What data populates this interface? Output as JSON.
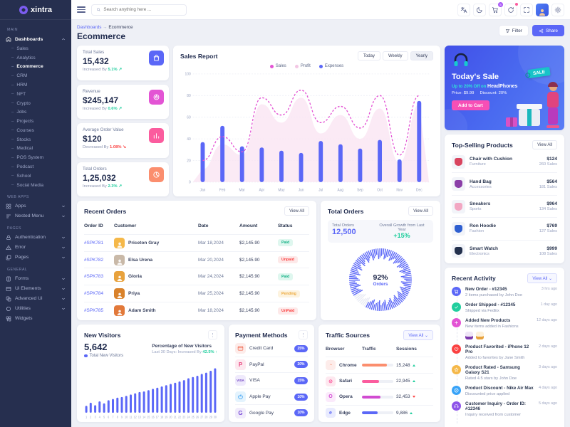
{
  "brand": {
    "name": "xintra"
  },
  "topbar": {
    "search_placeholder": "Search anything here ...",
    "cart_badge": "5"
  },
  "page": {
    "breadcrumb_parent": "Dashboards",
    "breadcrumb_sep": "→",
    "breadcrumb_current": "Ecommerce",
    "title": "Ecommerce",
    "filter_label": "Filter",
    "share_label": "Share"
  },
  "sidebar": {
    "sections": [
      {
        "label": "MAIN",
        "items": [
          {
            "label": "Dashboards",
            "icon": "home-icon",
            "expanded": true,
            "active": true,
            "children": [
              "Sales",
              "Analytics",
              "Ecommerce",
              "CRM",
              "HRM",
              "NFT",
              "Crypto",
              "Jobs",
              "Projects",
              "Courses",
              "Stocks",
              "Medical",
              "POS System",
              "Podcast",
              "School",
              "Social Media"
            ],
            "active_child": "Ecommerce"
          }
        ]
      },
      {
        "label": "WEB APPS",
        "items": [
          {
            "label": "Apps",
            "icon": "apps-icon",
            "chevron": true
          },
          {
            "label": "Nested Menu",
            "icon": "nested-menu-icon",
            "chevron": true
          }
        ]
      },
      {
        "label": "PAGES",
        "items": [
          {
            "label": "Authentication",
            "icon": "lock-icon",
            "chevron": true
          },
          {
            "label": "Error",
            "icon": "error-icon",
            "chevron": true
          },
          {
            "label": "Pages",
            "icon": "pages-icon",
            "chevron": true
          }
        ]
      },
      {
        "label": "GENERAL",
        "items": [
          {
            "label": "Forms",
            "icon": "forms-icon",
            "chevron": true
          },
          {
            "label": "Ui Elements",
            "icon": "ui-elements-icon",
            "chevron": true
          },
          {
            "label": "Advanced Ui",
            "icon": "advanced-ui-icon",
            "chevron": true
          },
          {
            "label": "Utilities",
            "icon": "utilities-icon",
            "chevron": true
          },
          {
            "label": "Widgets",
            "icon": "widgets-icon"
          }
        ]
      }
    ]
  },
  "stats": [
    {
      "label": "Total Sales",
      "value": "15,432",
      "change_prefix": "Increased By",
      "change": "5.1%",
      "direction": "up",
      "icon": "shopping-bag-icon",
      "icon_bg": "#5b67f7"
    },
    {
      "label": "Revenue",
      "value": "$245,147",
      "change_prefix": "Increased By",
      "change": "0.6%",
      "direction": "up",
      "icon": "donut-chart-icon",
      "icon_bg": "#e354d4"
    },
    {
      "label": "Average Order Value",
      "value": "$120",
      "change_prefix": "Decreased By",
      "change": "1.08%",
      "direction": "down",
      "icon": "bar-chart-icon",
      "icon_bg": "#fb5c9e"
    },
    {
      "label": "Total Orders",
      "value": "1,25,032",
      "change_prefix": "Increased By",
      "change": "2.3%",
      "direction": "up",
      "icon": "pie-chart-icon",
      "icon_bg": "#fb8e6e"
    }
  ],
  "sales_report": {
    "title": "Sales Report",
    "range_buttons": [
      "Today",
      "Weekly",
      "Yearly"
    ],
    "active_range": "Yearly"
  },
  "banner": {
    "title": "Today's Sale",
    "subtitle_highlight": "Up to 20% Off on",
    "subtitle_product": "HeadPhones",
    "price_label": "Price: $9.99",
    "discount_label": "Discount: 20%",
    "button_label": "Add to Cart",
    "sale_tag": "SALE"
  },
  "top_selling": {
    "title": "Top-Selling Products",
    "view_all_label": "View All",
    "products": [
      {
        "name": "Chair with Cushion",
        "category": "Furniture",
        "price": "$124",
        "sales": "260 Sales",
        "thumb_color": "#d9455f"
      },
      {
        "name": "Hand Bag",
        "category": "Accessories",
        "price": "$564",
        "sales": "181 Sales",
        "thumb_color": "#8b3fa8"
      },
      {
        "name": "Sneakers",
        "category": "Sports",
        "price": "$964",
        "sales": "134 Sales",
        "thumb_color": "#f2a7c3"
      },
      {
        "name": "Ron Hoodie",
        "category": "Fashion",
        "price": "$769",
        "sales": "127 Sales",
        "thumb_color": "#2f5fd0"
      },
      {
        "name": "Smart Watch",
        "category": "Electronics",
        "price": "$999",
        "sales": "108 Sales",
        "thumb_color": "#23304d"
      }
    ]
  },
  "recent_orders": {
    "title": "Recent Orders",
    "view_all_label": "View All",
    "columns": [
      "Order ID",
      "Customer",
      "Date",
      "Amount",
      "Status"
    ],
    "rows": [
      {
        "id": "#SPK781",
        "customer": "Priceton Gray",
        "date": "Mar 18,2024",
        "amount": "$2,145.90",
        "status": "Paid",
        "avatar_color": "#f5b849"
      },
      {
        "id": "#SPK782",
        "customer": "Elsa Urena",
        "date": "Mar 20,2024",
        "amount": "$2,145.90",
        "status": "Unpaid",
        "avatar_color": "#c9b9a8"
      },
      {
        "id": "#SPK783",
        "customer": "Gloria",
        "date": "Mar 24,2024",
        "amount": "$2,145.90",
        "status": "Paid",
        "avatar_color": "#e8a23d"
      },
      {
        "id": "#SPK784",
        "customer": "Priya",
        "date": "Mar 25,2024",
        "amount": "$2,145.90",
        "status": "Pending",
        "avatar_color": "#d9822b"
      },
      {
        "id": "#SPK785",
        "customer": "Adam Smith",
        "date": "Mar 18,2024",
        "amount": "$2,145.90",
        "status": "UnPaid",
        "avatar_color": "#e2793a"
      }
    ]
  },
  "total_orders": {
    "title": "Total Orders",
    "view_all_label": "View All",
    "summary_label": "Total Orders",
    "summary_value": "12,500",
    "growth_label": "Overall Growth from Last Year",
    "growth_value": "+15%",
    "gauge_value": "92%",
    "gauge_label": "Orders"
  },
  "recent_activity": {
    "title": "Recent Activity",
    "view_all_label": "View All",
    "items": [
      {
        "title": "New Order - #12345",
        "desc": "2 items purchased by John Doe",
        "time": "3 hrs ago",
        "color": "#5b67f7",
        "icon": "cart-icon"
      },
      {
        "title": "Order Shipped - #12345",
        "desc": "Shipped via FedEx",
        "time": "1 day ago",
        "color": "#21ce9e",
        "icon": "check-icon"
      },
      {
        "title": "Added New Products",
        "desc": "New items added in Fashions",
        "time": "12 days ago",
        "color": "#e354d4",
        "icon": "plus-icon",
        "thumbs": [
          "handbag-thumb",
          "dress-thumb"
        ]
      },
      {
        "title": "Product Favorited - iPhone 12 Pro",
        "desc": "Added to favorites by Jane Smith",
        "time": "2 days ago",
        "color": "#fb4242",
        "icon": "heart-icon"
      },
      {
        "title": "Product Rated - Samsung Galaxy S21",
        "desc": "Rated 4.5 stars by John Doe",
        "time": "3 days ago",
        "color": "#f5b849",
        "icon": "star-icon"
      },
      {
        "title": "Product Discount - Nike Air Max",
        "desc": "Discounted price applied",
        "time": "4 days ago",
        "color": "#38a3f8",
        "icon": "discount-icon"
      },
      {
        "title": "Customer Inquiry - Order ID: #12346",
        "desc": "Inquiry received from customer",
        "time": "5 days ago",
        "color": "#8e54e9",
        "icon": "support-icon"
      }
    ]
  },
  "new_visitors": {
    "title": "New Visitors",
    "value": "5,642",
    "legend": "Total New Visitors",
    "right_title": "Percentage of New Visitors",
    "right_sub_prefix": "Last 30 Days: Increased By",
    "right_sub_value": "42.5%"
  },
  "payment_methods": {
    "title": "Payment Methods",
    "items": [
      {
        "name": "Credit Card",
        "share": "25%",
        "icon": "credit-card-icon",
        "icon_bg": "#fdecea",
        "icon_color": "#f0654a"
      },
      {
        "name": "PayPal",
        "share": "20%",
        "icon": "paypal-icon",
        "icon_bg": "#fde8ef",
        "icon_color": "#e8447e"
      },
      {
        "name": "VISA",
        "share": "15%",
        "icon": "visa-icon",
        "icon_bg": "#efeafc",
        "icon_color": "#6f42c1"
      },
      {
        "name": "Apple Pay",
        "share": "10%",
        "icon": "apple-pay-icon",
        "icon_bg": "#e4f3fd",
        "icon_color": "#2196f3"
      },
      {
        "name": "Google Pay",
        "share": "10%",
        "icon": "google-pay-icon",
        "icon_bg": "#f1ecfb",
        "icon_color": "#7c4dd8"
      }
    ]
  },
  "traffic_sources": {
    "title": "Traffic Sources",
    "view_all_label": "View All",
    "columns": [
      "Browser",
      "Traffic",
      "Sessions"
    ],
    "rows": [
      {
        "browser": "Chrome",
        "sessions": "15,248",
        "trend": "up",
        "traffic_pct": 80,
        "color": "#fb8e6e",
        "icon_bg": "#fdecea",
        "glyph": "◔"
      },
      {
        "browser": "Safari",
        "sessions": "22,945",
        "trend": "up",
        "traffic_pct": 55,
        "color": "#fb5c9e",
        "icon_bg": "#fde8ef",
        "glyph": "⊘"
      },
      {
        "browser": "Opera",
        "sessions": "32,453",
        "trend": "down",
        "traffic_pct": 60,
        "color": "#d14bd1",
        "icon_bg": "#fbeafb",
        "glyph": "O"
      },
      {
        "browser": "Edge",
        "sessions": "9,886",
        "trend": "up",
        "traffic_pct": 50,
        "color": "#5b67f7",
        "icon_bg": "#e9ebfe",
        "glyph": "e"
      }
    ]
  },
  "chart_data": [
    {
      "type": "line",
      "name": "sales_report",
      "title": "Sales Report",
      "categories": [
        "Jan",
        "Feb",
        "Mar",
        "Apr",
        "May",
        "Jun",
        "Jul",
        "Aug",
        "Sep",
        "Oct",
        "Nov",
        "Dec"
      ],
      "series": [
        {
          "name": "Sales",
          "type": "line",
          "style": "dashed",
          "color": "#e354d4",
          "values": [
            20,
            42,
            28,
            78,
            62,
            85,
            55,
            70,
            50,
            80,
            25,
            80
          ]
        },
        {
          "name": "Profit",
          "type": "area",
          "color": "#f9e3f1",
          "values": [
            12,
            35,
            25,
            72,
            55,
            78,
            45,
            62,
            40,
            68,
            18,
            72
          ]
        },
        {
          "name": "Expenses",
          "type": "bar",
          "color": "#5b67f7",
          "values": [
            37,
            52,
            33,
            32,
            29,
            27,
            38,
            35,
            31,
            39,
            21,
            75
          ]
        }
      ],
      "ylim": [
        0,
        100
      ],
      "yticks": [
        0,
        20,
        40,
        60,
        80,
        100
      ],
      "grid": true,
      "legend_position": "top"
    },
    {
      "type": "gauge",
      "name": "total_orders_gauge",
      "value": 92,
      "max": 100,
      "label": "Orders",
      "color": "#5b67f7"
    },
    {
      "type": "bar",
      "name": "new_visitors",
      "categories": [
        "1",
        "2",
        "3",
        "4",
        "5",
        "6",
        "7",
        "8",
        "9",
        "10",
        "11",
        "12",
        "13",
        "14",
        "15",
        "16",
        "17",
        "18",
        "19",
        "20",
        "21",
        "22",
        "23",
        "24",
        "25",
        "26",
        "27",
        "28",
        "29",
        "30"
      ],
      "values": [
        11,
        16,
        12,
        18,
        15,
        20,
        22,
        24,
        25,
        27,
        29,
        31,
        33,
        34,
        36,
        38,
        40,
        42,
        44,
        46,
        48,
        50,
        52,
        55,
        57,
        59,
        62,
        64,
        67,
        71
      ],
      "ylim": [
        0,
        80
      ],
      "color": "#5b67f7"
    }
  ]
}
